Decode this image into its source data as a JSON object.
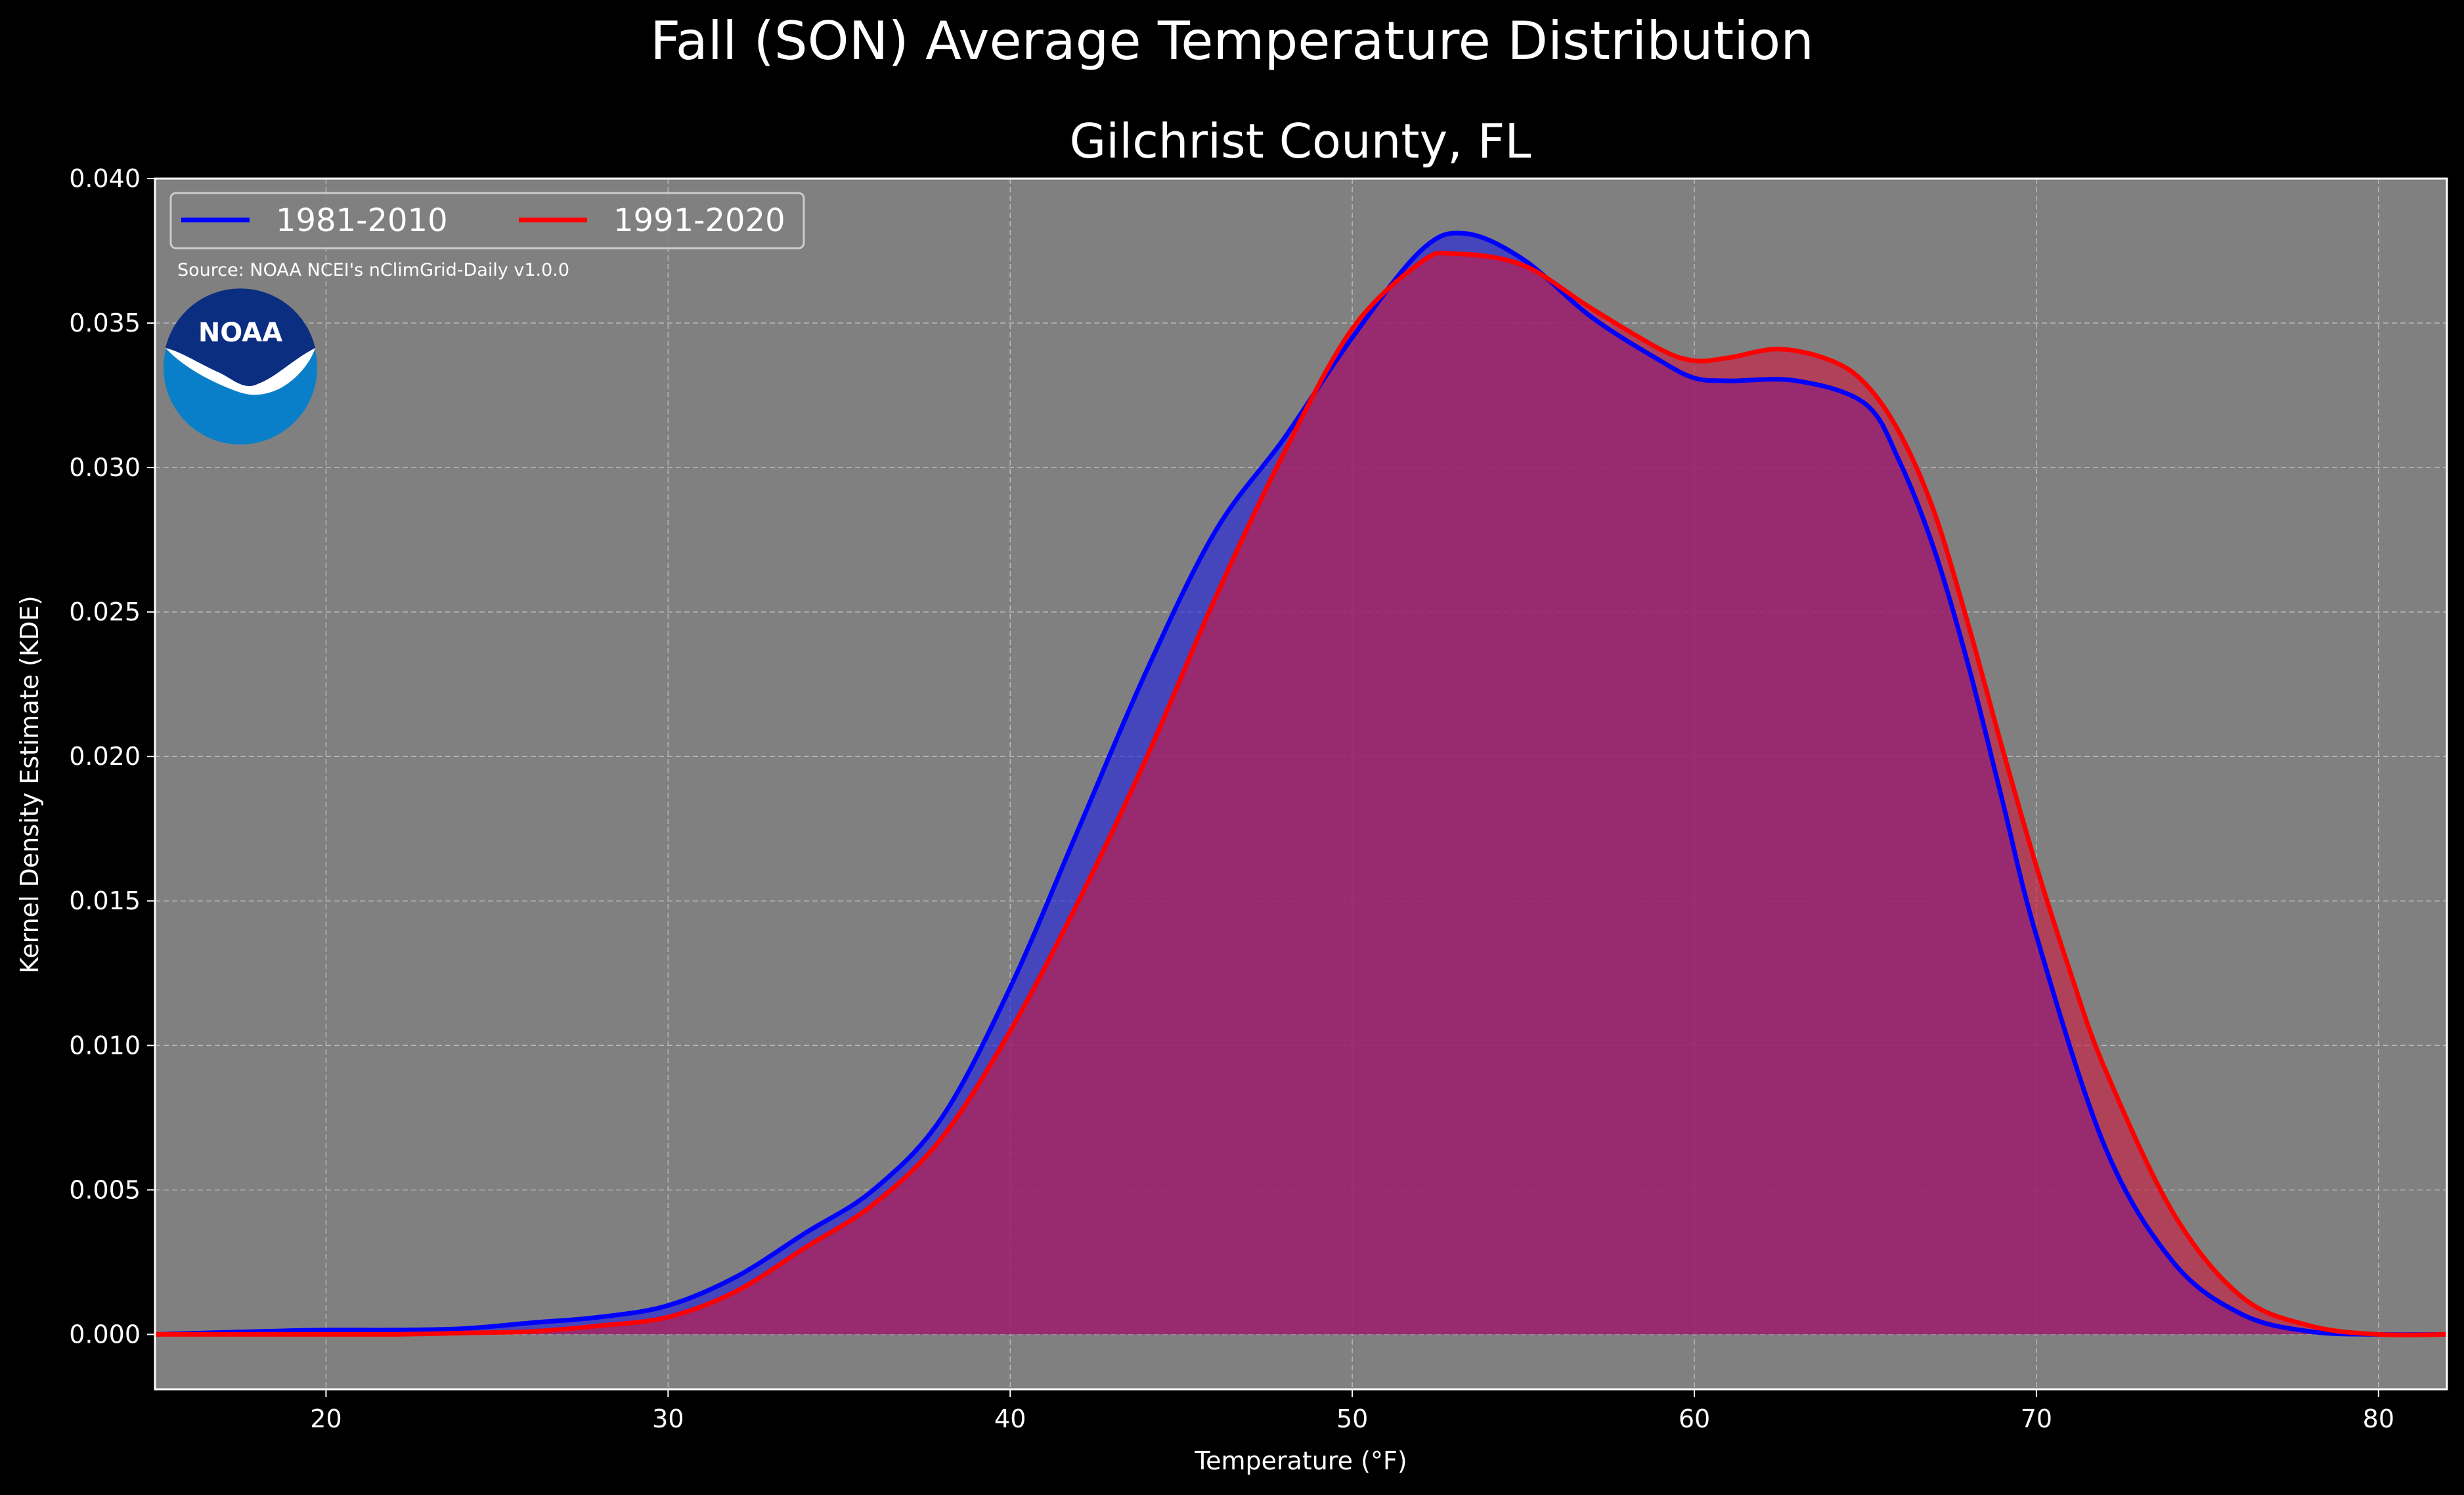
{
  "title": "Fall (SON) Average Temperature Distribution",
  "subtitle": "Gilchrist County, FL",
  "source": "Source: NOAA NCEI's nClimGrid-Daily v1.0.0",
  "logo_text": "NOAA",
  "chart_data": {
    "type": "area",
    "xlabel": "Temperature (°F)",
    "ylabel": "Kernel Density Estimate (KDE)",
    "xlim": [
      15,
      82
    ],
    "ylim": [
      -0.0019,
      0.04
    ],
    "xticks": [
      20,
      30,
      40,
      50,
      60,
      70,
      80
    ],
    "yticks": [
      0.0,
      0.005,
      0.01,
      0.015,
      0.02,
      0.025,
      0.03,
      0.035,
      0.04
    ],
    "ytick_labels": [
      "0.000",
      "0.005",
      "0.010",
      "0.015",
      "0.020",
      "0.025",
      "0.030",
      "0.035",
      "0.040"
    ],
    "grid": true,
    "legend_position": "upper-left",
    "background_color": "#808080",
    "series": [
      {
        "name": "1981-2010",
        "color": "#0000ff",
        "fill": "#2020e0",
        "x": [
          15,
          18,
          20,
          22,
          24,
          26,
          28,
          30,
          32,
          34,
          36,
          38,
          40,
          42,
          44,
          46,
          48,
          50,
          52,
          53.3,
          55,
          57,
          59,
          60,
          61,
          63,
          65,
          66,
          67,
          68,
          69,
          70,
          72,
          74,
          76,
          78,
          80,
          82
        ],
        "y": [
          0.0,
          0.0001,
          0.00015,
          0.00015,
          0.0002,
          0.0004,
          0.0006,
          0.001,
          0.002,
          0.0035,
          0.005,
          0.0075,
          0.012,
          0.0175,
          0.023,
          0.0278,
          0.031,
          0.0345,
          0.0375,
          0.0381,
          0.0372,
          0.0352,
          0.0337,
          0.0331,
          0.033,
          0.033,
          0.0322,
          0.0302,
          0.0272,
          0.0232,
          0.0185,
          0.0138,
          0.0065,
          0.0025,
          0.0007,
          0.0001,
          0.0,
          0.0
        ]
      },
      {
        "name": "1991-2020",
        "color": "#ff0000",
        "fill": "#cc1a40",
        "x": [
          15,
          18,
          20,
          22,
          24,
          26,
          28,
          30,
          32,
          34,
          36,
          38,
          40,
          42,
          44,
          46,
          48,
          50,
          52,
          53,
          55,
          57,
          59,
          60,
          61,
          62.5,
          64,
          65,
          66,
          67,
          68,
          69,
          70,
          71,
          72,
          74,
          76,
          78,
          80,
          82
        ],
        "y": [
          0.0,
          0.0,
          0.0,
          0.0,
          5e-05,
          0.0001,
          0.0003,
          0.0006,
          0.0015,
          0.003,
          0.0045,
          0.0068,
          0.0105,
          0.015,
          0.02,
          0.0255,
          0.0305,
          0.0348,
          0.0371,
          0.0374,
          0.037,
          0.0355,
          0.0341,
          0.0337,
          0.0338,
          0.0341,
          0.0337,
          0.0329,
          0.0312,
          0.0285,
          0.0246,
          0.0203,
          0.0162,
          0.0125,
          0.0092,
          0.0042,
          0.0013,
          0.0003,
          0.0,
          0.0
        ]
      }
    ]
  }
}
